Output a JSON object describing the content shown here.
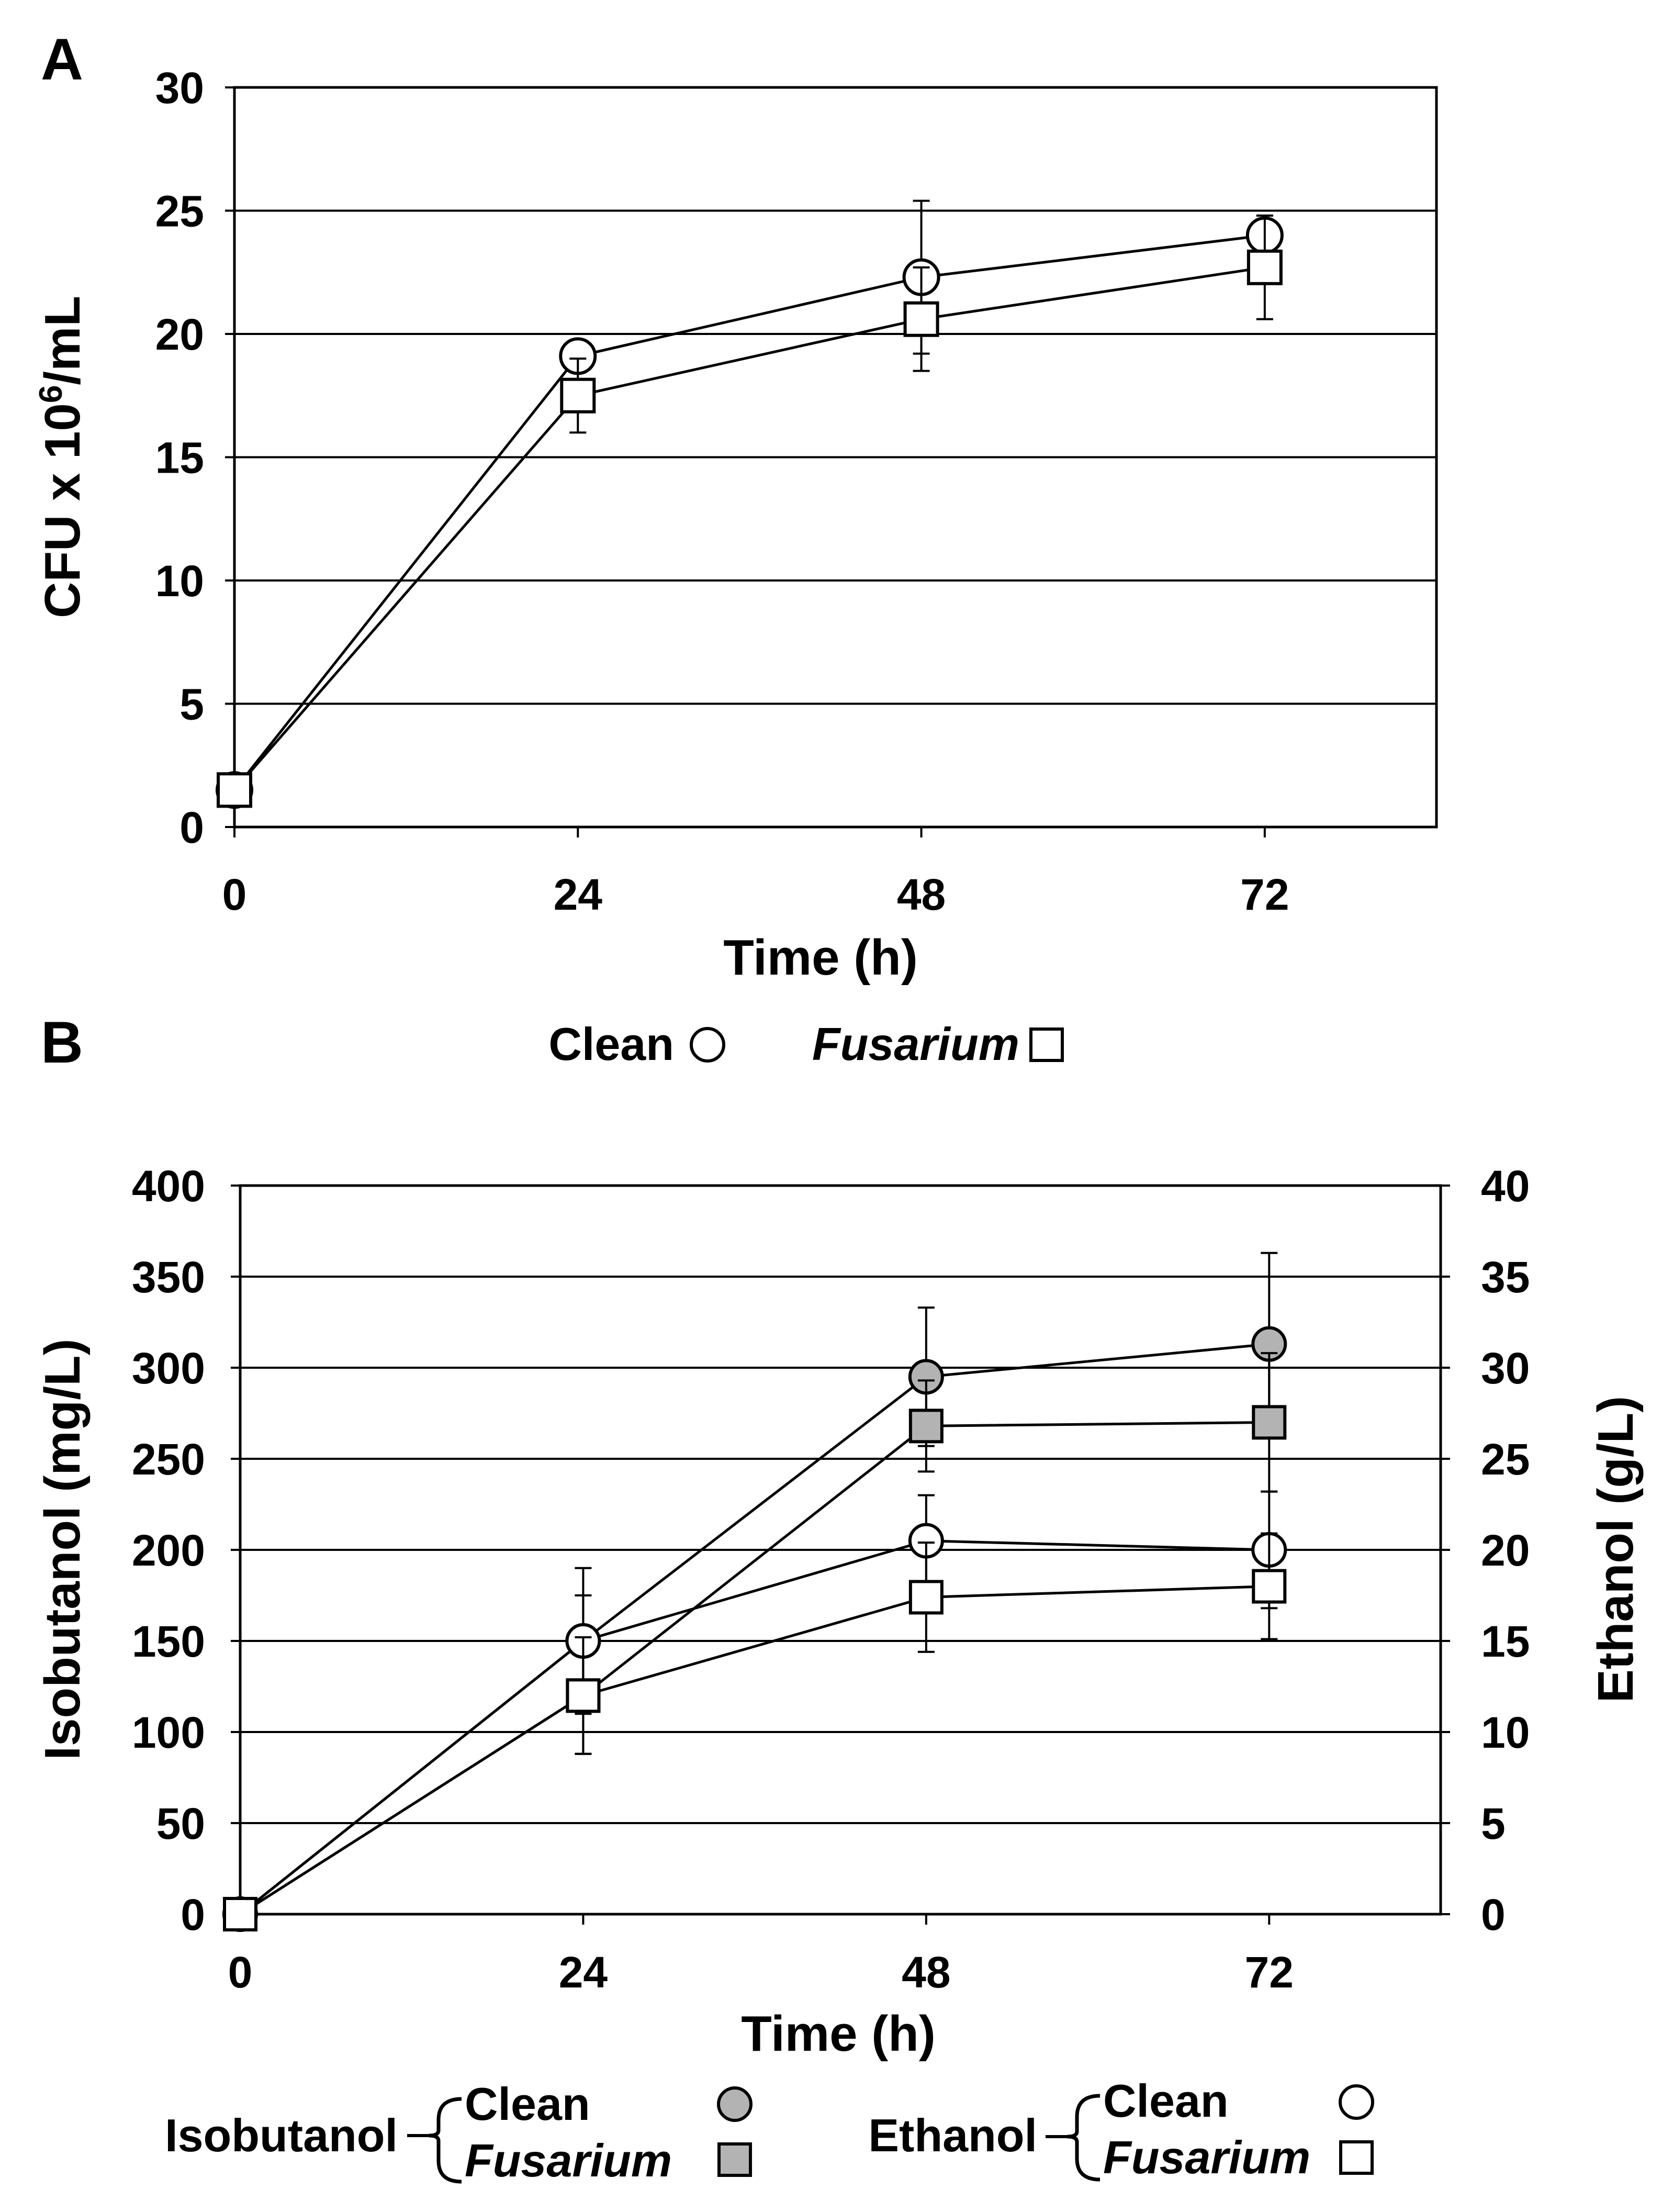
{
  "panels": {
    "a": {
      "letter": "A"
    },
    "b": {
      "letter": "B"
    }
  },
  "colors": {
    "line": "#000000",
    "marker_white": "#ffffff",
    "marker_gray": "#b3b3b3",
    "background": "#ffffff"
  },
  "legend_a": {
    "clean": "Clean",
    "fusarium": "Fusarium"
  },
  "legend_b": {
    "isobutanol": "Isobutanol",
    "ethanol": "Ethanol",
    "clean": "Clean",
    "fusarium": "Fusarium"
  },
  "chart_data": [
    {
      "id": "A",
      "type": "line",
      "xlabel": "Time (h)",
      "ylabel_parts": {
        "prefix": "CFU x 10",
        "sup": "6",
        "suffix": "/mL"
      },
      "x": [
        0,
        24,
        48,
        72
      ],
      "xticks": [
        0,
        24,
        48,
        72
      ],
      "xlim": [
        0,
        84
      ],
      "ylim": [
        0,
        30
      ],
      "yticks": [
        0,
        5,
        10,
        15,
        20,
        25,
        30
      ],
      "grid": true,
      "legend_position": "bottom",
      "series": [
        {
          "name": "Clean",
          "marker": "circle",
          "fill": "white",
          "values": [
            1.5,
            19.1,
            22.3,
            24.0
          ],
          "error": [
            0,
            0.5,
            3.1,
            0.8
          ]
        },
        {
          "name": "Fusarium",
          "marker": "square",
          "fill": "white",
          "values": [
            1.5,
            17.5,
            20.6,
            22.7
          ],
          "error": [
            0,
            1.5,
            2.1,
            2.1
          ]
        }
      ]
    },
    {
      "id": "B",
      "type": "line",
      "xlabel": "Time (h)",
      "ylabel": "Isobutanol (mg/L)",
      "ylabel_right": "Ethanol (g/L)",
      "x": [
        0,
        24,
        48,
        72
      ],
      "xticks": [
        0,
        24,
        48,
        72
      ],
      "xlim": [
        0,
        84
      ],
      "ylim": [
        0,
        400
      ],
      "yticks": [
        0,
        50,
        100,
        150,
        200,
        250,
        300,
        350,
        400
      ],
      "ylim_right": [
        0,
        40
      ],
      "yticks_right": [
        0,
        5,
        10,
        15,
        20,
        25,
        30,
        35,
        40
      ],
      "grid": true,
      "legend_position": "bottom",
      "series": [
        {
          "name": "Isobutanol Clean",
          "axis": "left",
          "marker": "circle",
          "fill": "gray",
          "values": [
            0,
            150,
            295,
            313
          ],
          "error": [
            0,
            40,
            38,
            50
          ]
        },
        {
          "name": "Isobutanol Fusarium",
          "axis": "left",
          "marker": "square",
          "fill": "gray",
          "values": [
            0,
            120,
            268,
            270
          ],
          "error": [
            0,
            32,
            25,
            38
          ]
        },
        {
          "name": "Ethanol Clean",
          "axis": "right",
          "marker": "circle",
          "fill": "white",
          "values": [
            0,
            15,
            20.5,
            20
          ],
          "error": [
            0,
            2.5,
            2.5,
            3.2
          ]
        },
        {
          "name": "Ethanol Fusarium",
          "axis": "right",
          "marker": "square",
          "fill": "white",
          "values": [
            0,
            12,
            17.4,
            18
          ],
          "error": [
            0,
            3.2,
            3.0,
            2.9
          ]
        }
      ]
    }
  ]
}
